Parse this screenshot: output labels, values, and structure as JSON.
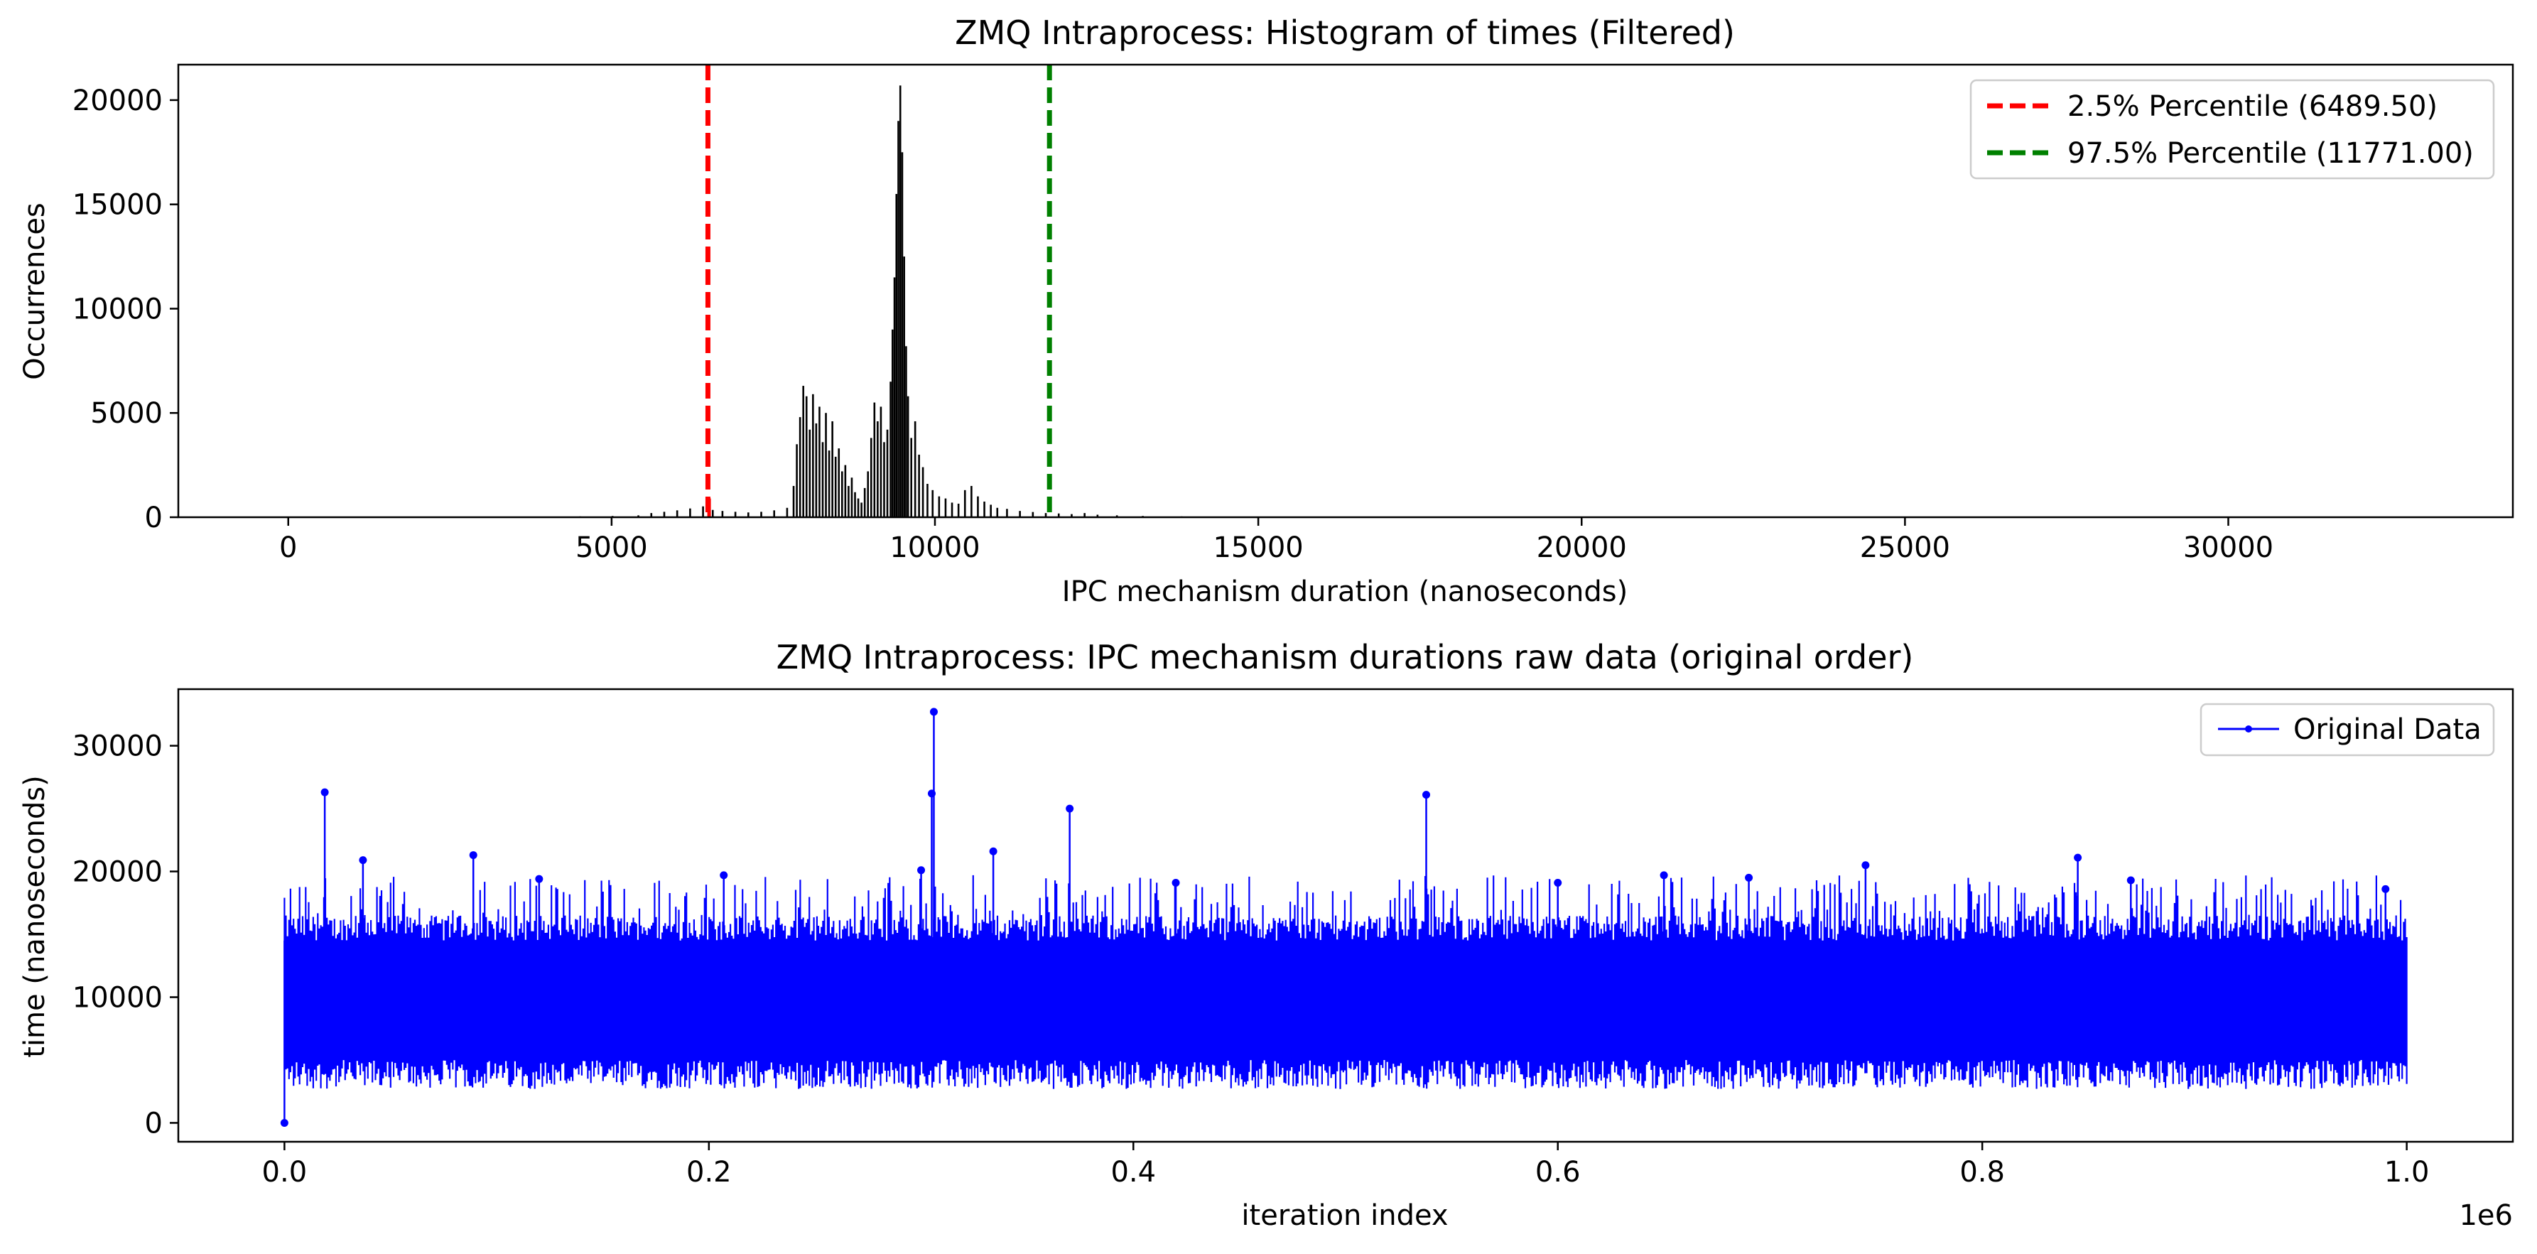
{
  "chart_data": [
    {
      "type": "histogram",
      "title": "ZMQ Intraprocess: Histogram of times (Filtered)",
      "xlabel": "IPC mechanism duration (nanoseconds)",
      "ylabel": "Occurrences",
      "xlim": [
        -1700,
        34400
      ],
      "ylim": [
        0,
        21700
      ],
      "xticks": [
        0,
        5000,
        10000,
        15000,
        20000,
        25000,
        30000
      ],
      "yticks": [
        0,
        5000,
        10000,
        15000,
        20000
      ],
      "bar_color": "#000000",
      "bins": [
        [
          3000,
          25
        ],
        [
          4000,
          20
        ],
        [
          4500,
          40
        ],
        [
          5000,
          60
        ],
        [
          5400,
          90
        ],
        [
          5600,
          200
        ],
        [
          5800,
          260
        ],
        [
          6000,
          330
        ],
        [
          6200,
          420
        ],
        [
          6400,
          520
        ],
        [
          6500,
          900
        ],
        [
          6550,
          350
        ],
        [
          6700,
          300
        ],
        [
          6900,
          260
        ],
        [
          7100,
          230
        ],
        [
          7300,
          260
        ],
        [
          7500,
          330
        ],
        [
          7700,
          450
        ],
        [
          7800,
          1500
        ],
        [
          7850,
          3500
        ],
        [
          7900,
          4800
        ],
        [
          7950,
          6300
        ],
        [
          8000,
          5800
        ],
        [
          8050,
          4200
        ],
        [
          8100,
          5900
        ],
        [
          8150,
          4500
        ],
        [
          8200,
          5300
        ],
        [
          8250,
          3600
        ],
        [
          8300,
          5000
        ],
        [
          8350,
          3200
        ],
        [
          8400,
          4600
        ],
        [
          8450,
          2900
        ],
        [
          8500,
          3300
        ],
        [
          8550,
          2200
        ],
        [
          8600,
          2500
        ],
        [
          8650,
          1500
        ],
        [
          8700,
          1900
        ],
        [
          8750,
          1200
        ],
        [
          8800,
          900
        ],
        [
          8850,
          700
        ],
        [
          8900,
          1400
        ],
        [
          8950,
          2200
        ],
        [
          9000,
          3800
        ],
        [
          9050,
          5500
        ],
        [
          9100,
          4600
        ],
        [
          9150,
          5300
        ],
        [
          9200,
          3600
        ],
        [
          9250,
          4200
        ],
        [
          9300,
          6500
        ],
        [
          9330,
          9000
        ],
        [
          9360,
          11500
        ],
        [
          9390,
          15500
        ],
        [
          9420,
          19000
        ],
        [
          9450,
          20700
        ],
        [
          9480,
          17500
        ],
        [
          9510,
          12500
        ],
        [
          9540,
          8200
        ],
        [
          9570,
          5800
        ],
        [
          9620,
          3800
        ],
        [
          9680,
          4600
        ],
        [
          9740,
          3000
        ],
        [
          9800,
          2400
        ],
        [
          9870,
          1600
        ],
        [
          9950,
          1300
        ],
        [
          10050,
          1000
        ],
        [
          10150,
          900
        ],
        [
          10250,
          700
        ],
        [
          10350,
          650
        ],
        [
          10450,
          1300
        ],
        [
          10550,
          1500
        ],
        [
          10650,
          1000
        ],
        [
          10750,
          750
        ],
        [
          10850,
          600
        ],
        [
          10950,
          450
        ],
        [
          11100,
          400
        ],
        [
          11300,
          300
        ],
        [
          11500,
          250
        ],
        [
          11700,
          200
        ],
        [
          11900,
          180
        ],
        [
          12100,
          150
        ],
        [
          12300,
          200
        ],
        [
          12500,
          120
        ],
        [
          12800,
          90
        ],
        [
          13200,
          60
        ],
        [
          13800,
          40
        ],
        [
          14500,
          30
        ],
        [
          15500,
          20
        ],
        [
          17000,
          15
        ],
        [
          19000,
          10
        ],
        [
          22000,
          8
        ],
        [
          25000,
          6
        ],
        [
          28000,
          5
        ],
        [
          32000,
          4
        ]
      ],
      "vlines": [
        {
          "x": 6489.5,
          "color": "#ff0000",
          "style": "dashed",
          "label": "2.5% Percentile (6489.50)"
        },
        {
          "x": 11771.0,
          "color": "#008000",
          "style": "dashed",
          "label": "97.5% Percentile (11771.00)"
        }
      ],
      "legend": {
        "placement": "top-right",
        "entries": [
          "2.5% Percentile (6489.50)",
          "97.5% Percentile (11771.00)"
        ]
      }
    },
    {
      "type": "line",
      "title": "ZMQ Intraprocess: IPC mechanism durations raw data (original order)",
      "xlabel": "iteration index",
      "ylabel": "time (nanoseconds)",
      "x_offset_label": "1e6",
      "xlim": [
        -0.05,
        1.05
      ],
      "ylim": [
        -1500,
        34500
      ],
      "xticks": [
        "0.0",
        "0.2",
        "0.4",
        "0.6",
        "0.8",
        "1.0"
      ],
      "yticks": [
        0,
        10000,
        20000,
        30000
      ],
      "series": [
        {
          "name": "Original Data",
          "color": "#0000ff",
          "marker": "circle",
          "n_points": 1000000,
          "points_sample": [
            [
              0.0,
              0
            ],
            [
              0.019,
              26300
            ],
            [
              0.037,
              20900
            ],
            [
              0.089,
              21300
            ],
            [
              0.12,
              19400
            ],
            [
              0.207,
              19700
            ],
            [
              0.3,
              20100
            ],
            [
              0.305,
              26200
            ],
            [
              0.306,
              32700
            ],
            [
              0.334,
              21600
            ],
            [
              0.37,
              25000
            ],
            [
              0.42,
              19100
            ],
            [
              0.538,
              26100
            ],
            [
              0.6,
              19100
            ],
            [
              0.65,
              19700
            ],
            [
              0.69,
              19500
            ],
            [
              0.745,
              20500
            ],
            [
              0.845,
              21100
            ],
            [
              0.87,
              19300
            ],
            [
              0.99,
              18600
            ]
          ],
          "typical_band": [
            5000,
            14500
          ],
          "lower_extent": 2700
        }
      ],
      "legend": {
        "placement": "top-right",
        "entries": [
          "Original Data"
        ]
      }
    }
  ]
}
